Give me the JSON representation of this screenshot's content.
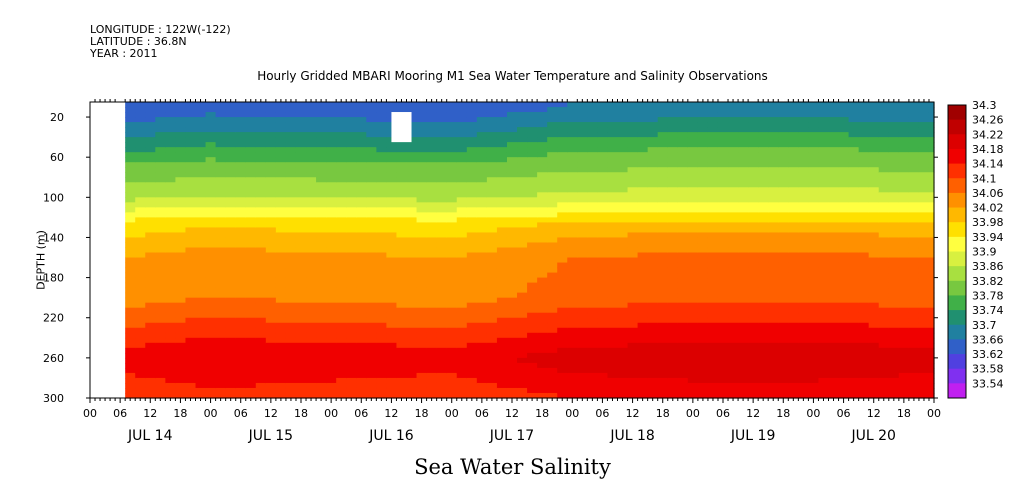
{
  "header": {
    "longitude": "LONGITUDE : 122W(-122)",
    "latitude": "LATITUDE : 36.8N",
    "year": "YEAR : 2011"
  },
  "chart_data": {
    "type": "heatmap",
    "title": "Hourly Gridded MBARI Mooring M1 Sea Water Temperature and Salinity Observations",
    "xlabel": "Sea Water Salinity",
    "ylabel": "DEPTH (m)",
    "y_ticks": [
      20,
      60,
      100,
      140,
      180,
      220,
      260,
      300
    ],
    "ylim": [
      300,
      5
    ],
    "x_hour_ticks": [
      "00",
      "06",
      "12",
      "18",
      "00",
      "06",
      "12",
      "18",
      "00",
      "06",
      "12",
      "18",
      "00",
      "06",
      "12",
      "18",
      "00",
      "06",
      "12",
      "18",
      "00",
      "06",
      "12",
      "18",
      "00",
      "06",
      "12",
      "18",
      "00"
    ],
    "x_day_labels": [
      "JUL 14",
      "JUL 15",
      "JUL 16",
      "JUL 17",
      "JUL 18",
      "JUL 19",
      "JUL 20"
    ],
    "xlim_hours": [
      0,
      168
    ],
    "colorbar": {
      "levels": [
        "34.3",
        "34.26",
        "34.22",
        "34.18",
        "34.14",
        "34.1",
        "34.06",
        "34.02",
        "33.98",
        "33.94",
        "33.9",
        "33.86",
        "33.82",
        "33.78",
        "33.74",
        "33.7",
        "33.66",
        "33.62",
        "33.58",
        "33.54"
      ],
      "colors": [
        "#a00000",
        "#c00000",
        "#dc0000",
        "#f00000",
        "#ff3000",
        "#ff6000",
        "#ff9000",
        "#ffb800",
        "#ffe000",
        "#ffff40",
        "#d8f040",
        "#a8e040",
        "#78c840",
        "#40b048",
        "#209070",
        "#2080a0",
        "#3060c8",
        "#5040e0",
        "#8030f0",
        "#c020f0"
      ]
    },
    "data_start_hour": 7,
    "missing_box": {
      "hour_range": [
        60,
        64
      ],
      "depth_range": [
        15,
        45
      ]
    },
    "profile": [
      {
        "depth": 10,
        "salinity": 33.68
      },
      {
        "depth": 40,
        "salinity": 33.76
      },
      {
        "depth": 70,
        "salinity": 33.84
      },
      {
        "depth": 100,
        "salinity": 33.9
      },
      {
        "depth": 130,
        "salinity": 34.02
      },
      {
        "depth": 160,
        "salinity": 34.08
      },
      {
        "depth": 200,
        "salinity": 34.1
      },
      {
        "depth": 230,
        "salinity": 34.16
      },
      {
        "depth": 260,
        "salinity": 34.22
      },
      {
        "depth": 290,
        "salinity": 34.18
      },
      {
        "depth": 300,
        "salinity": 34.16
      }
    ],
    "time_anomaly": [
      {
        "hour": 7,
        "offset": -0.02
      },
      {
        "hour": 24,
        "offset": 0.0
      },
      {
        "hour": 48,
        "offset": -0.01
      },
      {
        "hour": 72,
        "offset": -0.02
      },
      {
        "hour": 96,
        "offset": 0.02
      },
      {
        "hour": 120,
        "offset": 0.03
      },
      {
        "hour": 144,
        "offset": 0.03
      },
      {
        "hour": 168,
        "offset": 0.02
      }
    ]
  }
}
